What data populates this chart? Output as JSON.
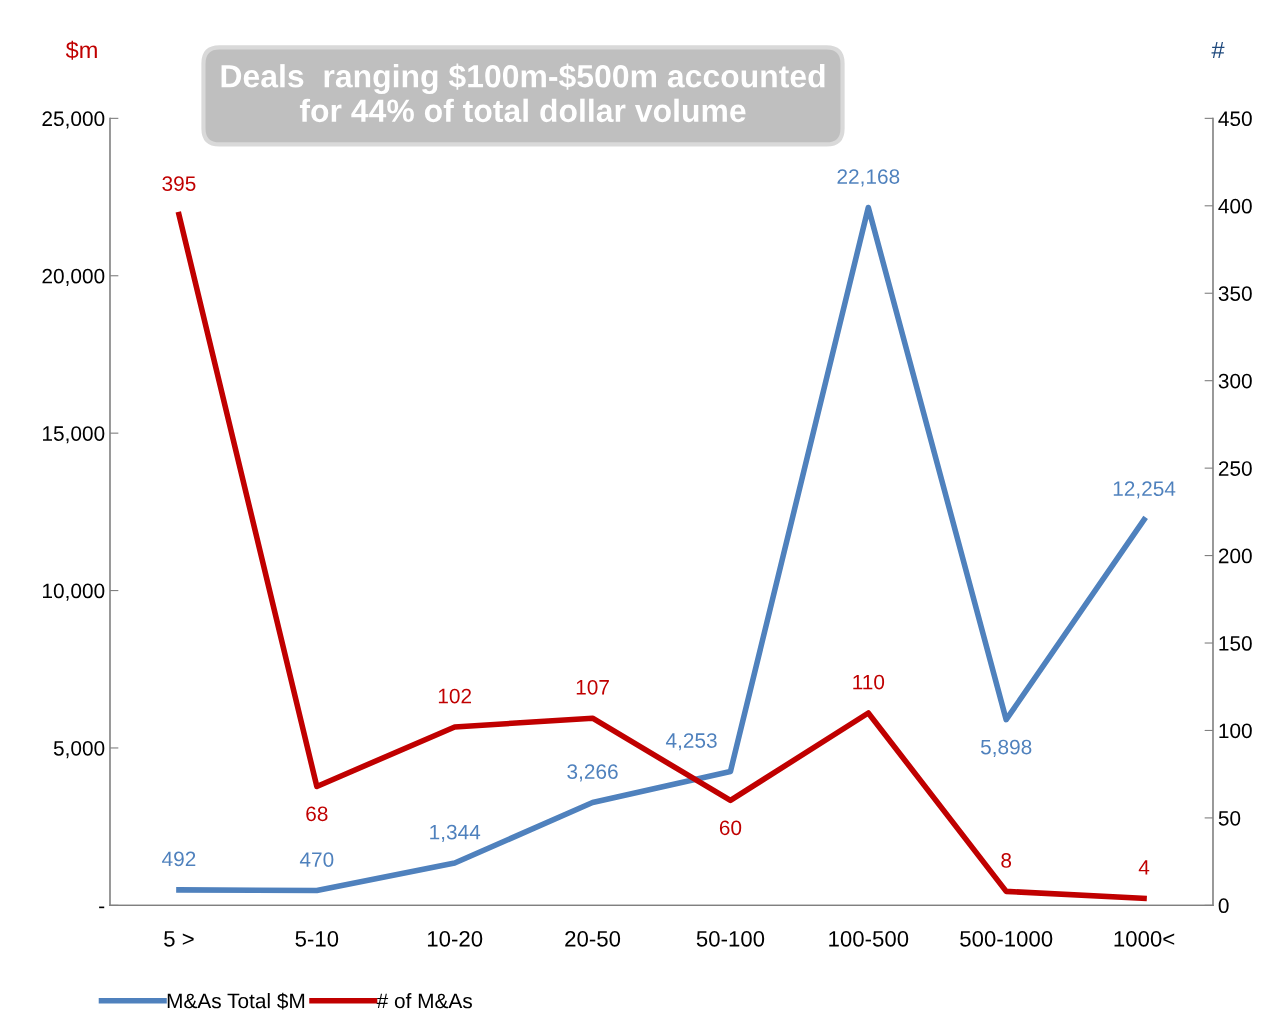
{
  "chart_data": {
    "type": "line",
    "categories": [
      "5 >",
      "5-10",
      "10-20",
      "20-50",
      "50-100",
      "100-500",
      "500-1000",
      "1000<"
    ],
    "series": [
      {
        "name": "M&As Total $M",
        "color": "#4f81bd",
        "values": [
          492,
          470,
          1344,
          3266,
          4253,
          22168,
          5898,
          12254
        ],
        "value_labels": [
          "492",
          "470",
          "1,344",
          "3,266",
          "4,253",
          "22,168",
          "5,898",
          "12,254"
        ]
      },
      {
        "name": "# of M&As",
        "color": "#c00000",
        "axis": "y2",
        "values": [
          395,
          68,
          102,
          107,
          60,
          110,
          8,
          4
        ],
        "value_labels": [
          "395",
          "68",
          "102",
          "107",
          "60",
          "110",
          "8",
          "4"
        ]
      }
    ],
    "ylabel": "$m",
    "y2label": "#",
    "ylim": [
      0,
      25000
    ],
    "yticks": [
      {
        "value": 0,
        "label": "-"
      },
      {
        "value": 5000,
        "label": "5,000"
      },
      {
        "value": 10000,
        "label": "10,000"
      },
      {
        "value": 15000,
        "label": "15,000"
      },
      {
        "value": 20000,
        "label": "20,000"
      },
      {
        "value": 25000,
        "label": "25,000"
      }
    ],
    "y2lim": [
      0,
      450
    ],
    "y2ticks": [
      0,
      50,
      100,
      150,
      200,
      250,
      300,
      350,
      400,
      450
    ],
    "annotations": [
      "Deals  ranging $100m-$500m accounted for 44% of total dollar volume"
    ],
    "grid": false,
    "legend": "bottom left",
    "marker": "none",
    "line_style": "solid"
  }
}
